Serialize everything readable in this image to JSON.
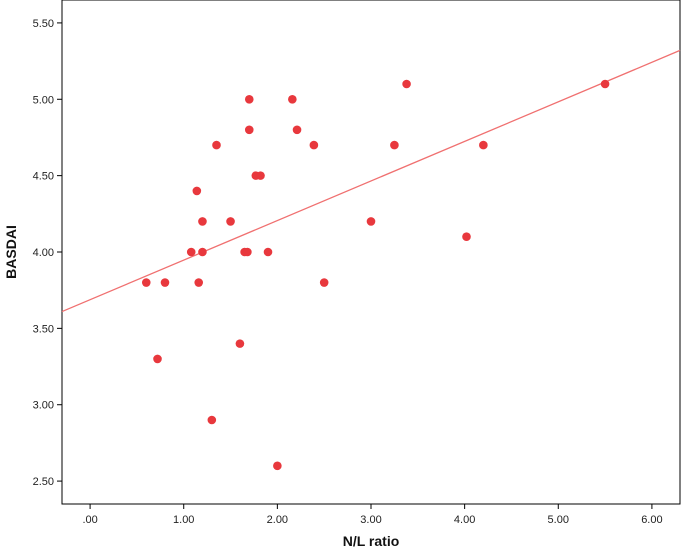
{
  "chart_data": {
    "type": "scatter",
    "title": "",
    "xlabel": "N/L ratio",
    "ylabel": "BASDAI",
    "xlim": [
      -0.3,
      6.3
    ],
    "ylim": [
      2.35,
      5.65
    ],
    "x_ticks": [
      0,
      1,
      2,
      3,
      4,
      5,
      6
    ],
    "x_tick_labels": [
      ".00",
      "1.00",
      "2.00",
      "3.00",
      "4.00",
      "5.00",
      "6.00"
    ],
    "y_ticks": [
      2.5,
      3.0,
      3.5,
      4.0,
      4.5,
      5.0,
      5.5
    ],
    "y_tick_labels": [
      "2.50",
      "3.00",
      "3.50",
      "4.00",
      "4.50",
      "5.00",
      "5.50"
    ],
    "grid": false,
    "legend": "none",
    "point_color": "#e8383d",
    "line_color": "#f07070",
    "series": [
      {
        "points": [
          {
            "x": 0.6,
            "y": 3.8
          },
          {
            "x": 0.72,
            "y": 3.3
          },
          {
            "x": 0.8,
            "y": 3.8
          },
          {
            "x": 1.08,
            "y": 4.0
          },
          {
            "x": 1.14,
            "y": 4.4
          },
          {
            "x": 1.16,
            "y": 3.8
          },
          {
            "x": 1.2,
            "y": 4.2
          },
          {
            "x": 1.2,
            "y": 4.0
          },
          {
            "x": 1.3,
            "y": 2.9
          },
          {
            "x": 1.35,
            "y": 4.7
          },
          {
            "x": 1.5,
            "y": 4.2
          },
          {
            "x": 1.6,
            "y": 3.4
          },
          {
            "x": 1.65,
            "y": 4.0
          },
          {
            "x": 1.68,
            "y": 4.0
          },
          {
            "x": 1.7,
            "y": 5.0
          },
          {
            "x": 1.7,
            "y": 4.8
          },
          {
            "x": 1.77,
            "y": 4.5
          },
          {
            "x": 1.82,
            "y": 4.5
          },
          {
            "x": 1.9,
            "y": 4.0
          },
          {
            "x": 2.0,
            "y": 2.6
          },
          {
            "x": 2.16,
            "y": 5.0
          },
          {
            "x": 2.21,
            "y": 4.8
          },
          {
            "x": 2.39,
            "y": 4.7
          },
          {
            "x": 2.5,
            "y": 3.8
          },
          {
            "x": 3.0,
            "y": 4.2
          },
          {
            "x": 3.25,
            "y": 4.7
          },
          {
            "x": 3.38,
            "y": 5.1
          },
          {
            "x": 4.02,
            "y": 4.1
          },
          {
            "x": 4.2,
            "y": 4.7
          },
          {
            "x": 5.5,
            "y": 5.1
          }
        ]
      }
    ],
    "fit_line": {
      "x": [
        -0.3,
        6.3
      ],
      "y": [
        3.61,
        5.32
      ]
    }
  }
}
